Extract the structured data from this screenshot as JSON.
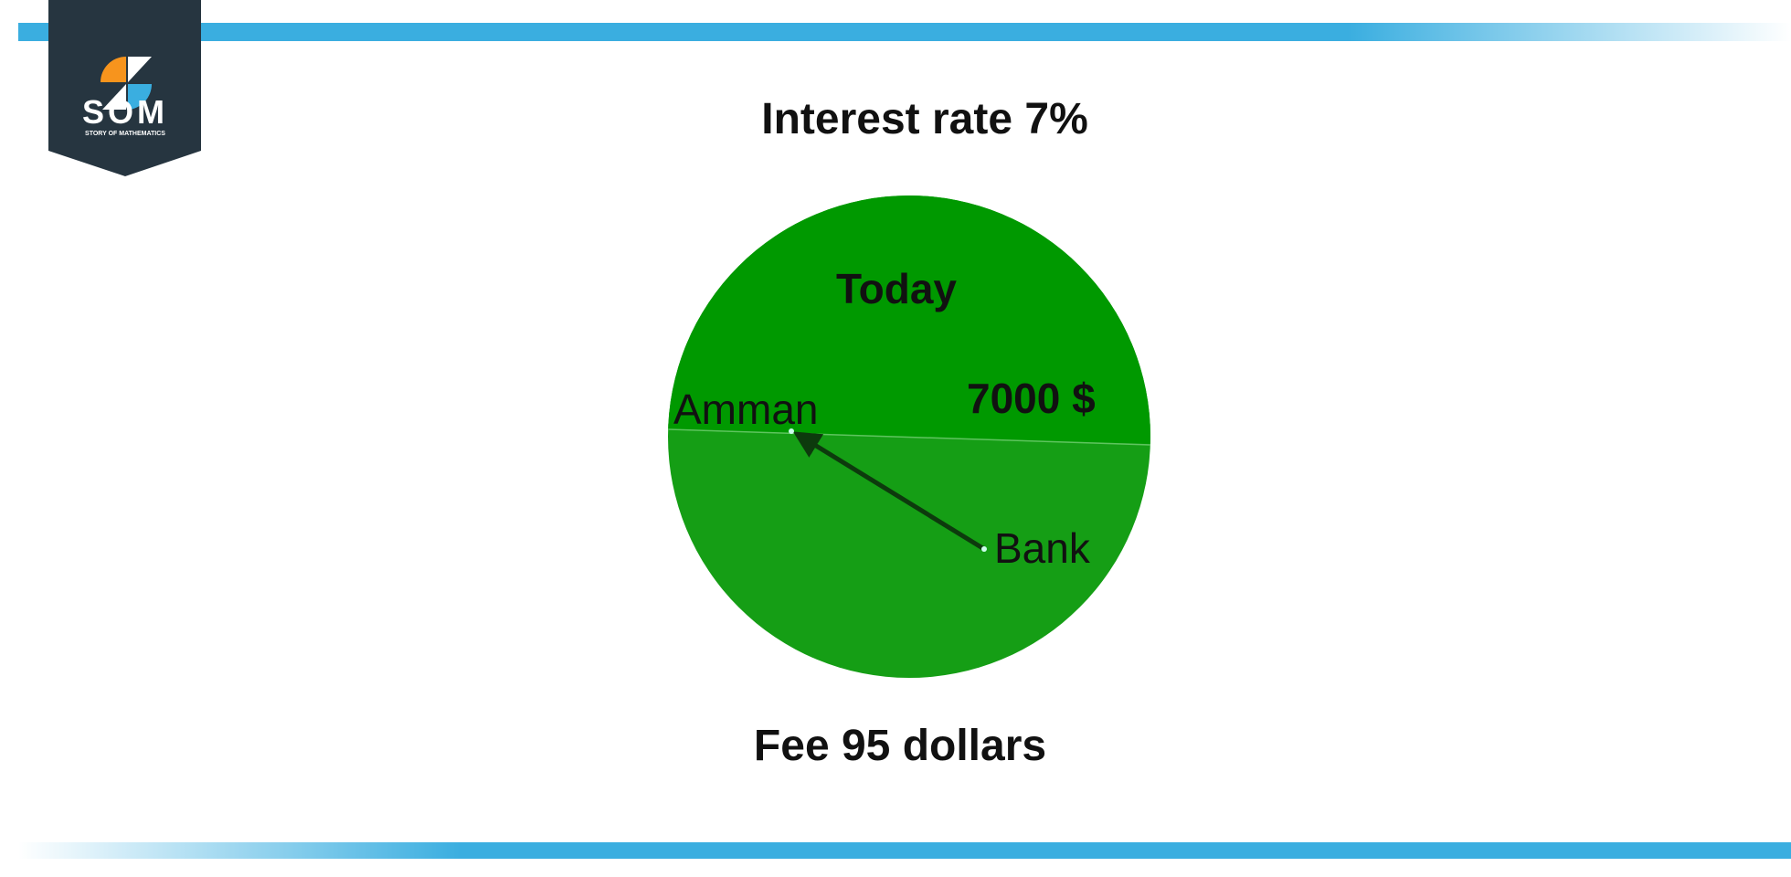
{
  "logo": {
    "text": "SOM",
    "subtext": "STORY OF MATHEMATICS"
  },
  "title": "Interest rate 7%",
  "pie": {
    "top_label": "Today",
    "amount_label": "7000 $",
    "from_label": "Bank",
    "to_label": "Amman",
    "colors": {
      "top": "#009900",
      "bottom": "#159e15",
      "arrow": "#0d3a0d"
    }
  },
  "caption": "Fee 95 dollars",
  "colors": {
    "accent_bar": "#3aaee0",
    "logo_bg": "#263540",
    "logo_orange": "#f7941d",
    "logo_blue": "#3aaee0"
  }
}
